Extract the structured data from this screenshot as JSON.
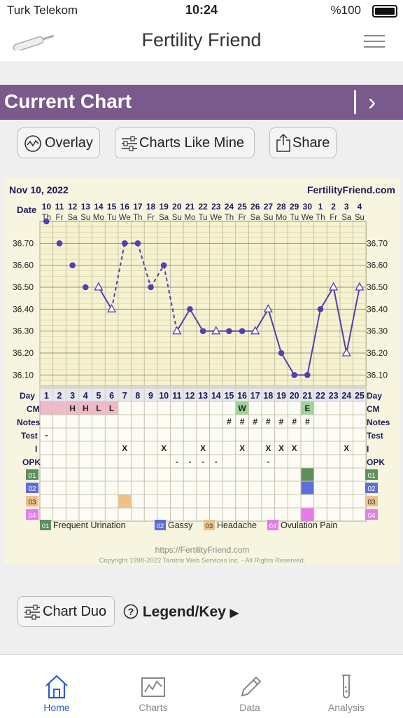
{
  "status": {
    "carrier": "Turk Telekom",
    "time": "10:24",
    "battery": "%100"
  },
  "header": {
    "title": "Fertility Friend"
  },
  "banner": {
    "title": "Current Chart"
  },
  "actions": {
    "overlay": "Overlay",
    "charts_like_mine": "Charts Like Mine",
    "share": "Share"
  },
  "chart": {
    "date": "Nov 10, 2022",
    "site": "FertilityFriend.com",
    "date_label": "Date",
    "day_label": "Day",
    "cm_label": "CM",
    "notes_label": "Notes",
    "test_label": "Test",
    "i_label": "I",
    "opk_label": "OPK",
    "footer_url": "https://FertilityFriend.com",
    "copyright": "Copyright 1998-2022 Tamtris Web Services Inc. - All Rights Reserved."
  },
  "chart_data": {
    "type": "line",
    "dates": [
      "10",
      "11",
      "12",
      "13",
      "14",
      "15",
      "16",
      "17",
      "18",
      "19",
      "20",
      "21",
      "22",
      "23",
      "24",
      "25",
      "26",
      "27",
      "28",
      "29",
      "30",
      "1",
      "2",
      "3",
      "4"
    ],
    "weekdays": [
      "Th",
      "Fr",
      "Sa",
      "Su",
      "Mo",
      "Tu",
      "We",
      "Th",
      "Fr",
      "Sa",
      "Su",
      "Mo",
      "Tu",
      "We",
      "Th",
      "Fr",
      "Sa",
      "Su",
      "Mo",
      "Tu",
      "We",
      "Th",
      "Fr",
      "Sa",
      "Su"
    ],
    "days": [
      1,
      2,
      3,
      4,
      5,
      6,
      7,
      8,
      9,
      10,
      11,
      12,
      13,
      14,
      15,
      16,
      17,
      18,
      19,
      20,
      21,
      22,
      23,
      24,
      25
    ],
    "y_ticks": [
      "36.70",
      "36.60",
      "36.50",
      "36.40",
      "36.30",
      "36.20",
      "36.10"
    ],
    "ylim": [
      36.05,
      36.8
    ],
    "temperatures": [
      36.8,
      36.7,
      36.6,
      36.5,
      36.5,
      36.4,
      36.7,
      36.7,
      36.5,
      36.6,
      36.3,
      36.4,
      36.3,
      36.3,
      36.3,
      36.3,
      36.3,
      36.4,
      36.2,
      36.1,
      36.1,
      36.4,
      36.5,
      36.2,
      36.5
    ],
    "markers": [
      "dot",
      "dot",
      "dot",
      "dot",
      "tri",
      "tri",
      "dot",
      "dot",
      "dot",
      "dot",
      "tri",
      "dot",
      "dot",
      "tri",
      "dot",
      "dot",
      "tri",
      "tri",
      "dot",
      "dot",
      "dot",
      "dot",
      "tri",
      "tri",
      "tri"
    ],
    "line_segments": [
      [
        4,
        5,
        "solid"
      ],
      [
        5,
        8,
        "dashed"
      ],
      [
        8,
        10,
        "dashed"
      ],
      [
        10,
        24,
        "solid"
      ]
    ],
    "cm": [
      "",
      "",
      "H",
      "H",
      "L",
      "L",
      "",
      "",
      "",
      "",
      "",
      "",
      "",
      "",
      "",
      "W",
      "",
      "",
      "",
      "",
      "E",
      "",
      "",
      "",
      ""
    ],
    "notes": [
      "",
      "",
      "",
      "",
      "",
      "",
      "",
      "",
      "",
      "",
      "",
      "",
      "",
      "",
      "#",
      "#",
      "#",
      "#",
      "#",
      "#",
      "#",
      "",
      "",
      "",
      ""
    ],
    "test": [
      "-",
      "",
      "",
      "",
      "",
      "",
      "",
      "",
      "",
      "",
      "",
      "",
      "",
      "",
      "",
      "",
      "",
      "",
      "",
      "",
      "",
      "",
      "",
      "",
      ""
    ],
    "intercourse": [
      "",
      "",
      "",
      "",
      "",
      "",
      "X",
      "",
      "",
      "X",
      "",
      "",
      "X",
      "",
      "",
      "X",
      "",
      "X",
      "X",
      "X",
      "",
      "",
      "",
      "X",
      ""
    ],
    "opk": [
      "",
      "",
      "",
      "",
      "",
      "",
      "",
      "",
      "",
      "",
      "-",
      "-",
      "-",
      "-",
      "",
      "",
      "",
      "-",
      "",
      "",
      "",
      "",
      "",
      "",
      ""
    ],
    "symptoms": [
      {
        "code": "01",
        "name": "Frequent Urination",
        "color": "#5e8f5e",
        "days": [
          21
        ]
      },
      {
        "code": "02",
        "name": "Gassy",
        "color": "#5e6edc",
        "days": [
          21
        ]
      },
      {
        "code": "03",
        "name": "Headache",
        "color": "#efc08a",
        "days": [
          7
        ]
      },
      {
        "code": "04",
        "name": "Ovulation Pain",
        "color": "#ea7aea",
        "days": [
          21
        ]
      }
    ]
  },
  "bottom": {
    "chart_duo": "Chart Duo",
    "legend_key": "Legend/Key"
  },
  "tabs": [
    {
      "label": "Home"
    },
    {
      "label": "Charts"
    },
    {
      "label": "Data"
    },
    {
      "label": "Analysis"
    }
  ],
  "colors": {
    "banner": "#7a5a8c",
    "line": "#5040b0",
    "tab_active": "#2a5bd7",
    "chart_bg": "#f7f5df"
  }
}
